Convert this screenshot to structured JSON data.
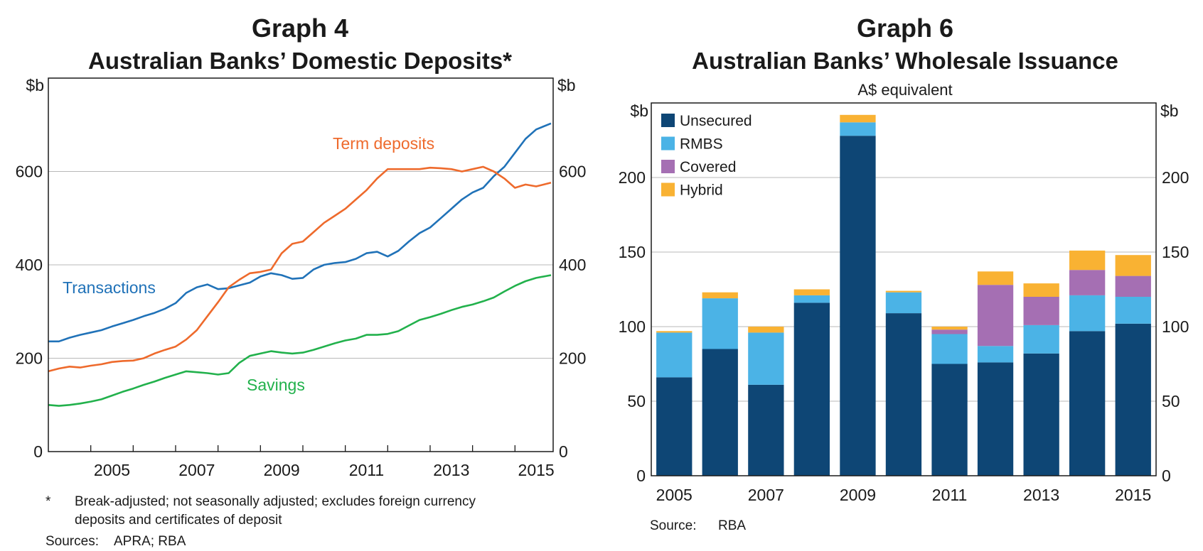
{
  "chart_data": [
    {
      "type": "line",
      "graph_number": "Graph 4",
      "title": "Australian Banks’ Domestic Deposits*",
      "ylabel_left": "$b",
      "ylabel_right": "$b",
      "ylim": [
        0,
        800
      ],
      "yticks": [
        0,
        200,
        400,
        600
      ],
      "xlim": [
        2004.0,
        2015.9
      ],
      "xticks": [
        "2005",
        "2007",
        "2009",
        "2011",
        "2013",
        "2015"
      ],
      "grid": true,
      "series": [
        {
          "name": "Transactions",
          "color": "#2072b8",
          "x": [
            2004.0,
            2004.25,
            2004.5,
            2004.75,
            2005.0,
            2005.25,
            2005.5,
            2005.75,
            2006.0,
            2006.25,
            2006.5,
            2006.75,
            2007.0,
            2007.25,
            2007.5,
            2007.75,
            2008.0,
            2008.25,
            2008.5,
            2008.75,
            2009.0,
            2009.25,
            2009.5,
            2009.75,
            2010.0,
            2010.25,
            2010.5,
            2010.75,
            2011.0,
            2011.25,
            2011.5,
            2011.75,
            2012.0,
            2012.25,
            2012.5,
            2012.75,
            2013.0,
            2013.25,
            2013.5,
            2013.75,
            2014.0,
            2014.25,
            2014.5,
            2014.75,
            2015.0,
            2015.25,
            2015.5,
            2015.85
          ],
          "y": [
            236,
            236,
            244,
            250,
            255,
            260,
            268,
            275,
            282,
            290,
            297,
            306,
            318,
            340,
            352,
            358,
            348,
            350,
            356,
            362,
            375,
            382,
            378,
            370,
            372,
            390,
            400,
            404,
            406,
            413,
            425,
            428,
            418,
            430,
            450,
            468,
            480,
            500,
            520,
            540,
            555,
            565,
            590,
            610,
            640,
            670,
            690,
            703
          ]
        },
        {
          "name": "Term deposits",
          "color": "#ee6a2c",
          "x": [
            2004.0,
            2004.25,
            2004.5,
            2004.75,
            2005.0,
            2005.25,
            2005.5,
            2005.75,
            2006.0,
            2006.25,
            2006.5,
            2006.75,
            2007.0,
            2007.25,
            2007.5,
            2007.75,
            2008.0,
            2008.25,
            2008.5,
            2008.75,
            2009.0,
            2009.25,
            2009.5,
            2009.75,
            2010.0,
            2010.25,
            2010.5,
            2010.75,
            2011.0,
            2011.25,
            2011.5,
            2011.75,
            2012.0,
            2012.25,
            2012.5,
            2012.75,
            2013.0,
            2013.25,
            2013.5,
            2013.75,
            2014.0,
            2014.25,
            2014.5,
            2014.75,
            2015.0,
            2015.25,
            2015.5,
            2015.85
          ],
          "y": [
            172,
            178,
            182,
            180,
            184,
            187,
            192,
            194,
            195,
            200,
            210,
            218,
            225,
            240,
            260,
            290,
            320,
            352,
            368,
            382,
            385,
            390,
            425,
            445,
            450,
            470,
            490,
            505,
            520,
            540,
            560,
            585,
            605,
            605,
            605,
            605,
            608,
            607,
            605,
            600,
            605,
            610,
            600,
            585,
            565,
            572,
            568,
            576
          ]
        },
        {
          "name": "Savings",
          "color": "#22b14c",
          "x": [
            2004.0,
            2004.25,
            2004.5,
            2004.75,
            2005.0,
            2005.25,
            2005.5,
            2005.75,
            2006.0,
            2006.25,
            2006.5,
            2006.75,
            2007.0,
            2007.25,
            2007.5,
            2007.75,
            2008.0,
            2008.25,
            2008.5,
            2008.75,
            2009.0,
            2009.25,
            2009.5,
            2009.75,
            2010.0,
            2010.25,
            2010.5,
            2010.75,
            2011.0,
            2011.25,
            2011.5,
            2011.75,
            2012.0,
            2012.25,
            2012.5,
            2012.75,
            2013.0,
            2013.25,
            2013.5,
            2013.75,
            2014.0,
            2014.25,
            2014.5,
            2014.75,
            2015.0,
            2015.25,
            2015.5,
            2015.85
          ],
          "y": [
            100,
            98,
            100,
            103,
            107,
            112,
            120,
            128,
            135,
            143,
            150,
            158,
            165,
            172,
            170,
            168,
            165,
            168,
            190,
            205,
            210,
            215,
            212,
            210,
            212,
            218,
            225,
            232,
            238,
            242,
            250,
            250,
            252,
            258,
            270,
            282,
            288,
            295,
            303,
            310,
            315,
            322,
            330,
            343,
            355,
            365,
            372,
            378
          ]
        }
      ],
      "annotations": {
        "transactions_label": "Transactions",
        "term_deposits_label": "Term deposits",
        "savings_label": "Savings"
      },
      "footnote_marker": "*",
      "footnote_line1": "Break-adjusted; not seasonally adjusted; excludes foreign currency",
      "footnote_line2": "deposits and certificates of deposit",
      "sources_label": "Sources:",
      "sources_value": "APRA; RBA"
    },
    {
      "type": "bar",
      "stacked": true,
      "graph_number": "Graph 6",
      "title": "Australian Banks’ Wholesale Issuance",
      "subtitle": "A$ equivalent",
      "ylabel_left": "$b",
      "ylabel_right": "$b",
      "ylim": [
        0,
        250
      ],
      "yticks": [
        0,
        50,
        100,
        150,
        200
      ],
      "categories": [
        "2005",
        "2006",
        "2007",
        "2008",
        "2009",
        "2010",
        "2011",
        "2012",
        "2013",
        "2014",
        "2015"
      ],
      "xtick_labels": [
        "2005",
        "2007",
        "2009",
        "2011",
        "2013",
        "2015"
      ],
      "xtick_categories": [
        "2005",
        "2007",
        "2009",
        "2011",
        "2013",
        "2015"
      ],
      "grid": true,
      "legend_position": "top-left",
      "series": [
        {
          "name": "Unsecured",
          "color": "#0e4675",
          "values": [
            66,
            85,
            61,
            116,
            228,
            109,
            75,
            76,
            82,
            97,
            102
          ]
        },
        {
          "name": "RMBS",
          "color": "#4bb3e6",
          "values": [
            30,
            34,
            35,
            5,
            9,
            14,
            20,
            11,
            19,
            24,
            18
          ]
        },
        {
          "name": "Covered",
          "color": "#a56fb3",
          "values": [
            0,
            0,
            0,
            0,
            0,
            0,
            3,
            41,
            19,
            17,
            14
          ]
        },
        {
          "name": "Hybrid",
          "color": "#f9b233",
          "values": [
            1,
            4,
            4,
            4,
            5,
            1,
            2,
            9,
            9,
            13,
            14
          ]
        }
      ],
      "sources_label": "Source:",
      "sources_value": "RBA"
    }
  ]
}
